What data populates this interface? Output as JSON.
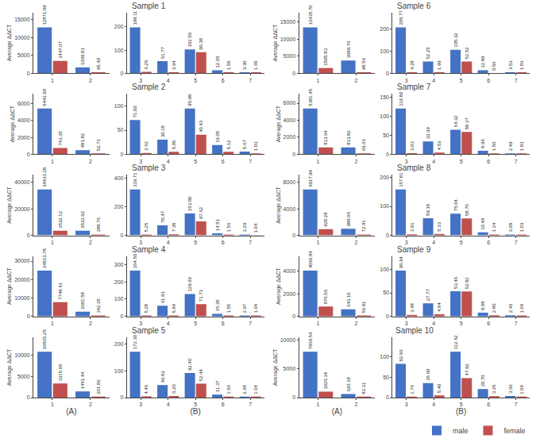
{
  "chart_data": [
    {
      "type": "bar",
      "title": "Sample 1",
      "ylabel": "Average ΔΔCT",
      "categories": [
        "1",
        "2"
      ],
      "series": [
        {
          "name": "male",
          "color": "#4472C4",
          "values": [
            12871.09,
            1609.81
          ],
          "value_labels": [
            "12871.09",
            "1609.81"
          ]
        },
        {
          "name": "female",
          "color": "#C0504D",
          "values": [
            3447.07,
            95.4
          ],
          "value_labels": [
            "3447.07",
            "95.40"
          ]
        }
      ],
      "ylim": [
        0,
        16989.8388
      ],
      "yticks": [
        0,
        5000,
        10000,
        15000
      ],
      "grid": false,
      "data_labels": true
    },
    {
      "type": "bar",
      "categories": [
        "3",
        "4",
        "5",
        "6",
        "7"
      ],
      "series": [
        {
          "name": "male",
          "color": "#4472C4",
          "values": [
            198.11,
            51.77,
            102.5,
            12.65,
            3.3
          ],
          "value_labels": [
            "198.11",
            "51.77",
            "102.50",
            "12.65",
            "3.30"
          ]
        },
        {
          "name": "female",
          "color": "#C0504D",
          "values": [
            6.25,
            3.94,
            90.38,
            1.55,
            1.65
          ],
          "value_labels": [
            "6.25",
            "3.94",
            "90.38",
            "1.55",
            "1.65"
          ]
        }
      ],
      "ylim": [
        0,
        261.5052
      ],
      "yticks": [
        0,
        100,
        200
      ],
      "grid": false,
      "data_labels": true
    },
    {
      "type": "bar",
      "title": "Sample 2",
      "ylabel": "Average ΔΔCT",
      "categories": [
        "1",
        "2"
      ],
      "series": [
        {
          "name": "male",
          "color": "#4472C4",
          "values": [
            5443.9,
            481.82
          ],
          "value_labels": [
            "5443.90",
            "481.82"
          ]
        },
        {
          "name": "female",
          "color": "#C0504D",
          "values": [
            743.35,
            52.71
          ],
          "value_labels": [
            "743.35",
            "52.71"
          ]
        }
      ],
      "ylim": [
        0,
        7185.948
      ],
      "yticks": [
        0,
        2000,
        4000,
        6000
      ],
      "grid": false,
      "data_labels": true
    },
    {
      "type": "bar",
      "categories": [
        "3",
        "4",
        "5",
        "6",
        "7"
      ],
      "series": [
        {
          "name": "male",
          "color": "#4472C4",
          "values": [
            71.0,
            30.18,
            95.08,
            19.05,
            5.67
          ],
          "value_labels": [
            "71.00",
            "30.18",
            "95.08",
            "19.05",
            "5.67"
          ]
        },
        {
          "name": "female",
          "color": "#C0504D",
          "values": [
            2.62,
            5.05,
            40.43,
            5.12,
            1.03
          ],
          "value_labels": [
            "2.62",
            "5.05",
            "40.43",
            "5.12",
            "1.03"
          ]
        }
      ],
      "ylim": [
        0,
        125.5056
      ],
      "yticks": [
        0,
        50,
        100
      ],
      "grid": false,
      "data_labels": true
    },
    {
      "type": "bar",
      "title": "Sample 3",
      "ylabel": "Average ΔΔCT",
      "categories": [
        "1",
        "2"
      ],
      "series": [
        {
          "name": "male",
          "color": "#4472C4",
          "values": [
            34433.28,
            3533.92
          ],
          "value_labels": [
            "34433.28",
            "3533.92"
          ]
        },
        {
          "name": "female",
          "color": "#C0504D",
          "values": [
            3532.12,
            388.76
          ],
          "value_labels": [
            "3532.12",
            "388.76"
          ]
        }
      ],
      "ylim": [
        0,
        45451.9296
      ],
      "yticks": [
        0,
        20000,
        40000
      ],
      "grid": false,
      "data_labels": true
    },
    {
      "type": "bar",
      "categories": [
        "3",
        "4",
        "5",
        "6",
        "7"
      ],
      "series": [
        {
          "name": "male",
          "color": "#4472C4",
          "values": [
            319.71,
            70.47,
            153.0,
            14.51,
            3.29
          ],
          "value_labels": [
            "319.71",
            "70.47",
            "153.00",
            "14.51",
            "3.29"
          ]
        },
        {
          "name": "female",
          "color": "#C0504D",
          "values": [
            5.25,
            7.38,
            97.62,
            1.56,
            1.04
          ],
          "value_labels": [
            "5.25",
            "7.38",
            "97.62",
            "1.56",
            "1.04"
          ]
        }
      ],
      "ylim": [
        0,
        422.0172
      ],
      "yticks": [
        0,
        200,
        400
      ],
      "grid": false,
      "data_labels": true
    },
    {
      "type": "bar",
      "title": "Sample 4",
      "ylabel": "Average ΔΔCT",
      "categories": [
        "1",
        "2"
      ],
      "series": [
        {
          "name": "male",
          "color": "#4472C4",
          "values": [
            24813.78,
            2601.58
          ],
          "value_labels": [
            "24813.78",
            "2601.58"
          ]
        },
        {
          "name": "female",
          "color": "#C0504D",
          "values": [
            7748.41,
            342.35
          ],
          "value_labels": [
            "7748.41",
            "342.35"
          ]
        }
      ],
      "ylim": [
        0,
        32754.1896
      ],
      "yticks": [
        0,
        10000,
        20000,
        30000
      ],
      "grid": false,
      "data_labels": true
    },
    {
      "type": "bar",
      "categories": [
        "3",
        "4",
        "5",
        "6",
        "7"
      ],
      "series": [
        {
          "name": "male",
          "color": "#4472C4",
          "values": [
            264.5,
            61.91,
            129.69,
            15.35,
            2.97
          ],
          "value_labels": [
            "264.50",
            "61.91",
            "129.69",
            "15.35",
            "2.97"
          ]
        },
        {
          "name": "female",
          "color": "#C0504D",
          "values": [
            5.28,
            5.84,
            71.73,
            1.55,
            1.04
          ],
          "value_labels": [
            "5.28",
            "5.84",
            "71.73",
            "1.55",
            "1.04"
          ]
        }
      ],
      "ylim": [
        0,
        349.14
      ],
      "yticks": [
        0,
        100,
        200,
        300
      ],
      "grid": false,
      "data_labels": true
    },
    {
      "type": "bar",
      "title": "Sample 5",
      "ylabel": "Average ΔΔCT",
      "xlabel": "(A)",
      "categories": [
        "1",
        "2"
      ],
      "series": [
        {
          "name": "male",
          "color": "#4472C4",
          "values": [
            10815.25,
            1451.44
          ],
          "value_labels": [
            "10815.25",
            "1451.44"
          ]
        },
        {
          "name": "female",
          "color": "#C0504D",
          "values": [
            3315.06,
            201.06
          ],
          "value_labels": [
            "3315.06",
            "201.06"
          ]
        }
      ],
      "ylim": [
        0,
        14276.13
      ],
      "yticks": [
        0,
        5000,
        10000
      ],
      "grid": false,
      "data_labels": true
    },
    {
      "type": "bar",
      "xlabel": "(B)",
      "categories": [
        "3",
        "4",
        "5",
        "6",
        "7"
      ],
      "series": [
        {
          "name": "male",
          "color": "#4472C4",
          "values": [
            172.3,
            46.82,
            92.4,
            11.37,
            2.68
          ],
          "value_labels": [
            "172.30",
            "46.82",
            "92.40",
            "11.37",
            "2.68"
          ]
        },
        {
          "name": "female",
          "color": "#C0504D",
          "values": [
            4.46,
            6.2,
            52.44,
            1.56,
            1.04
          ],
          "value_labels": [
            "4.46",
            "6.20",
            "52.44",
            "1.56",
            "1.04"
          ]
        }
      ],
      "ylim": [
        0,
        227.436
      ],
      "yticks": [
        0,
        100,
        200
      ],
      "grid": false,
      "data_labels": true
    },
    {
      "type": "bar",
      "title": "Sample 6",
      "ylabel": "Average ΔΔCT",
      "categories": [
        "1",
        "2"
      ],
      "series": [
        {
          "name": "male",
          "color": "#4472C4",
          "values": [
            13435.7,
            3689.76
          ],
          "value_labels": [
            "13435.70",
            "3689.76"
          ]
        },
        {
          "name": "female",
          "color": "#C0504D",
          "values": [
            1505.83,
            98.56
          ],
          "value_labels": [
            "1505.83",
            "98.56"
          ]
        }
      ],
      "ylim": [
        0,
        17735.124
      ],
      "yticks": [
        0,
        5000,
        10000,
        15000
      ],
      "grid": false,
      "data_labels": true
    },
    {
      "type": "bar",
      "categories": [
        "3",
        "4",
        "5",
        "6",
        "7"
      ],
      "series": [
        {
          "name": "male",
          "color": "#4472C4",
          "values": [
            205.77,
            52.25,
            105.32,
            12.89,
            3.53
          ],
          "value_labels": [
            "205.77",
            "52.25",
            "105.32",
            "12.89",
            "3.53"
          ]
        },
        {
          "name": "female",
          "color": "#C0504D",
          "values": [
            4.28,
            1.99,
            52.52,
            0.56,
            1.03
          ],
          "value_labels": [
            "4.28",
            "1.99",
            "52.52",
            "0.56",
            "1.03"
          ]
        }
      ],
      "ylim": [
        0,
        271.6164
      ],
      "yticks": [
        0,
        100,
        200
      ],
      "grid": false,
      "data_labels": true
    },
    {
      "type": "bar",
      "title": "Sample 7",
      "ylabel": "Average ΔΔCT",
      "categories": [
        "1",
        "2"
      ],
      "series": [
        {
          "name": "male",
          "color": "#4472C4",
          "values": [
            5381.45,
            813.82
          ],
          "value_labels": [
            "5381.45",
            "813.82"
          ]
        },
        {
          "name": "female",
          "color": "#C0504D",
          "values": [
            813.64,
            69.63
          ],
          "value_labels": [
            "813.64",
            "69.63"
          ]
        }
      ],
      "ylim": [
        0,
        7103.514
      ],
      "yticks": [
        0,
        2000,
        4000,
        6000
      ],
      "grid": false,
      "data_labels": true
    },
    {
      "type": "bar",
      "categories": [
        "3",
        "4",
        "5",
        "6",
        "7"
      ],
      "series": [
        {
          "name": "male",
          "color": "#4472C4",
          "values": [
            119.8,
            33.39,
            64.32,
            8.94,
            2.49
          ],
          "value_labels": [
            "119.80",
            "33.39",
            "64.32",
            "8.94",
            "2.49"
          ]
        },
        {
          "name": "female",
          "color": "#C0504D",
          "values": [
            3.03,
            4.53,
            58.37,
            1.5,
            1.03
          ],
          "value_labels": [
            "3.03",
            "4.53",
            "58.37",
            "1.50",
            "1.03"
          ]
        }
      ],
      "ylim": [
        0,
        158.136
      ],
      "yticks": [
        0,
        50,
        100,
        150
      ],
      "grid": false,
      "data_labels": true
    },
    {
      "type": "bar",
      "title": "Sample 8",
      "ylabel": "Average ΔΔCT",
      "categories": [
        "1",
        "2"
      ],
      "series": [
        {
          "name": "male",
          "color": "#4472C4",
          "values": [
            6917.99,
            988.06
          ],
          "value_labels": [
            "6917.99",
            "988.06"
          ]
        },
        {
          "name": "female",
          "color": "#C0504D",
          "values": [
            928.28,
            72.91
          ],
          "value_labels": [
            "928.28",
            "72.91"
          ]
        }
      ],
      "ylim": [
        0,
        9131.7468
      ],
      "yticks": [
        0,
        4000,
        8000
      ],
      "grid": false,
      "data_labels": true
    },
    {
      "type": "bar",
      "categories": [
        "3",
        "4",
        "5",
        "6",
        "7"
      ],
      "series": [
        {
          "name": "male",
          "color": "#4472C4",
          "values": [
            157.81,
            59.18,
            75.04,
            10.48,
            3.08
          ],
          "value_labels": [
            "157.81",
            "59.18",
            "75.04",
            "10.48",
            "3.08"
          ]
        },
        {
          "name": "female",
          "color": "#C0504D",
          "values": [
            3.91,
            5.33,
            58.7,
            1.34,
            1.03
          ],
          "value_labels": [
            "3.91",
            "5.33",
            "58.70",
            "1.34",
            "1.03"
          ]
        }
      ],
      "ylim": [
        0,
        208.3092
      ],
      "yticks": [
        0,
        100,
        200
      ],
      "grid": false,
      "data_labels": true
    },
    {
      "type": "bar",
      "title": "Sample 9",
      "ylabel": "Average ΔΔCT",
      "categories": [
        "1",
        "2"
      ],
      "series": [
        {
          "name": "male",
          "color": "#4472C4",
          "values": [
            4060.84,
            643.1
          ],
          "value_labels": [
            "4060.84",
            "643.10"
          ]
        },
        {
          "name": "female",
          "color": "#C0504D",
          "values": [
            876.56,
            56.91
          ],
          "value_labels": [
            "876.56",
            "56.91"
          ]
        }
      ],
      "ylim": [
        0,
        5360.3088
      ],
      "yticks": [
        0,
        2000,
        4000
      ],
      "grid": false,
      "data_labels": true
    },
    {
      "type": "bar",
      "categories": [
        "3",
        "4",
        "5",
        "6",
        "7"
      ],
      "series": [
        {
          "name": "male",
          "color": "#4472C4",
          "values": [
            96.94,
            27.77,
            53.46,
            8.08,
            2.46
          ],
          "value_labels": [
            "96.94",
            "27.77",
            "53.46",
            "8.08",
            "2.46"
          ]
        },
        {
          "name": "female",
          "color": "#C0504D",
          "values": [
            3.48,
            4.84,
            52.82,
            2.8,
            1.04
          ],
          "value_labels": [
            "3.48",
            "4.84",
            "52.82",
            "2.80",
            "1.04"
          ]
        }
      ],
      "ylim": [
        0,
        127.9608
      ],
      "yticks": [
        0,
        50,
        100
      ],
      "grid": false,
      "data_labels": true
    },
    {
      "type": "bar",
      "title": "Sample 10",
      "ylabel": "Average ΔΔCT",
      "xlabel": "(A)",
      "categories": [
        "1",
        "2"
      ],
      "series": [
        {
          "name": "male",
          "color": "#4472C4",
          "values": [
            7964.54,
            620.18
          ],
          "value_labels": [
            "7964.54",
            "620.18"
          ]
        },
        {
          "name": "female",
          "color": "#C0504D",
          "values": [
            1026.34,
            83.31
          ],
          "value_labels": [
            "1026.34",
            "83.31"
          ]
        }
      ],
      "ylim": [
        0,
        10513.1928
      ],
      "yticks": [
        0,
        5000,
        10000
      ],
      "grid": false,
      "data_labels": true
    },
    {
      "type": "bar",
      "xlabel": "(B)",
      "categories": [
        "3",
        "4",
        "5",
        "6",
        "7"
      ],
      "series": [
        {
          "name": "male",
          "color": "#4472C4",
          "values": [
            82.66,
            35.6,
            112.42,
            20.7,
            3.66
          ],
          "value_labels": [
            "82.66",
            "35.60",
            "112.42",
            "20.70",
            "3.66"
          ]
        },
        {
          "name": "female",
          "color": "#C0504D",
          "values": [
            1.76,
            5.4,
            47.92,
            3.25,
            1.04
          ],
          "value_labels": [
            "1.76",
            "5.40",
            "47.92",
            "3.25",
            "1.04"
          ]
        }
      ],
      "ylim": [
        0,
        148.3944
      ],
      "yticks": [
        0,
        50,
        100
      ],
      "grid": false,
      "data_labels": true,
      "legend": "lower right"
    }
  ]
}
